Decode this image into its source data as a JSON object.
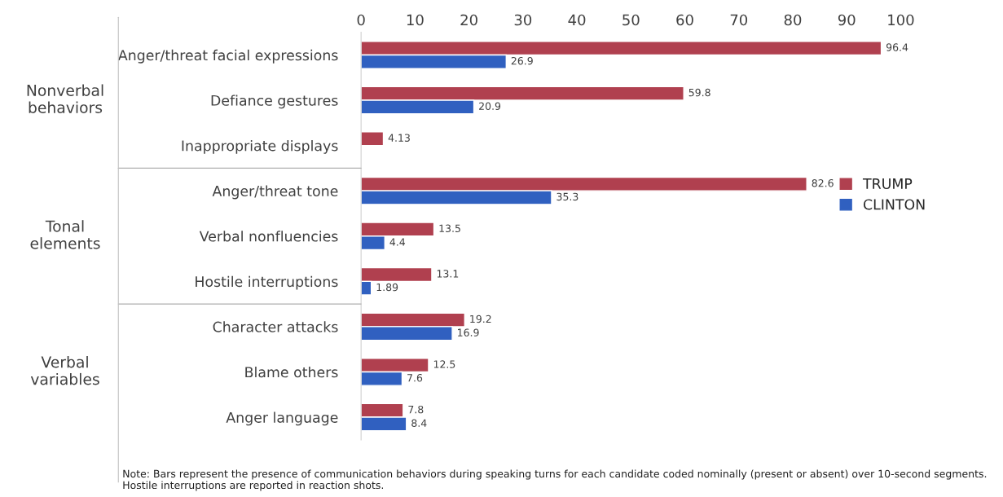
{
  "chart_data": {
    "type": "bar",
    "orientation": "horizontal",
    "categories": [
      "Anger/threat facial expressions",
      "Defiance gestures",
      "Inappropriate displays",
      "Anger/threat tone",
      "Verbal nonfluencies",
      "Hostile interruptions",
      "Character attacks",
      "Blame others",
      "Anger language"
    ],
    "series": [
      {
        "name": "TRUMP",
        "color": "#b0404f",
        "values": [
          96.4,
          59.8,
          4.13,
          82.6,
          13.5,
          13.1,
          19.2,
          12.5,
          7.8
        ]
      },
      {
        "name": "CLINTON",
        "color": "#3060c0",
        "values": [
          26.9,
          20.9,
          null,
          35.3,
          4.4,
          1.89,
          16.9,
          7.6,
          8.4
        ]
      }
    ],
    "xlim": [
      0,
      100
    ],
    "xticks": [
      0,
      10,
      20,
      30,
      40,
      50,
      60,
      70,
      80,
      90,
      100
    ],
    "data_labels": true,
    "grid": false,
    "legend": "right",
    "annotations": [
      "Nonverbal\nbehaviors",
      "Tonal\nelements",
      "Verbal\nvariables",
      "Note: Bars represent the presence of communication behaviors during speaking turns for each candidate coded nominally (present or absent) over 10-second segments. Hostile interruptions are reported in reaction shots."
    ]
  }
}
